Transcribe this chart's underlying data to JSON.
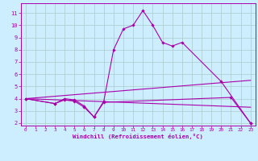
{
  "xlabel": "Windchill (Refroidissement éolien,°C)",
  "bg_color": "#cceeff",
  "line_color": "#aa00aa",
  "grid_color": "#aacccc",
  "xlim": [
    -0.5,
    23.5
  ],
  "ylim": [
    1.8,
    11.8
  ],
  "yticks": [
    2,
    3,
    4,
    5,
    6,
    7,
    8,
    9,
    10,
    11
  ],
  "xticks": [
    0,
    1,
    2,
    3,
    4,
    5,
    6,
    7,
    8,
    9,
    10,
    11,
    12,
    13,
    14,
    15,
    16,
    17,
    18,
    19,
    20,
    21,
    22,
    23
  ],
  "lines": [
    {
      "x": [
        0,
        3,
        4,
        5,
        6,
        7,
        8,
        21,
        23
      ],
      "y": [
        4.0,
        3.6,
        3.9,
        3.8,
        3.3,
        2.5,
        3.7,
        4.1,
        2.0
      ],
      "marker": true
    },
    {
      "x": [
        0,
        3,
        4,
        5,
        6,
        7,
        8,
        9,
        10,
        11,
        12,
        13,
        14,
        15,
        16,
        20,
        23
      ],
      "y": [
        4.0,
        3.6,
        4.0,
        3.9,
        3.4,
        2.5,
        3.8,
        8.0,
        9.7,
        10.0,
        11.2,
        10.0,
        8.6,
        8.3,
        8.6,
        5.4,
        2.0
      ],
      "marker": true
    },
    {
      "x": [
        0,
        23
      ],
      "y": [
        4.0,
        3.3
      ],
      "marker": false
    },
    {
      "x": [
        0,
        23
      ],
      "y": [
        4.0,
        5.5
      ],
      "marker": false
    }
  ]
}
